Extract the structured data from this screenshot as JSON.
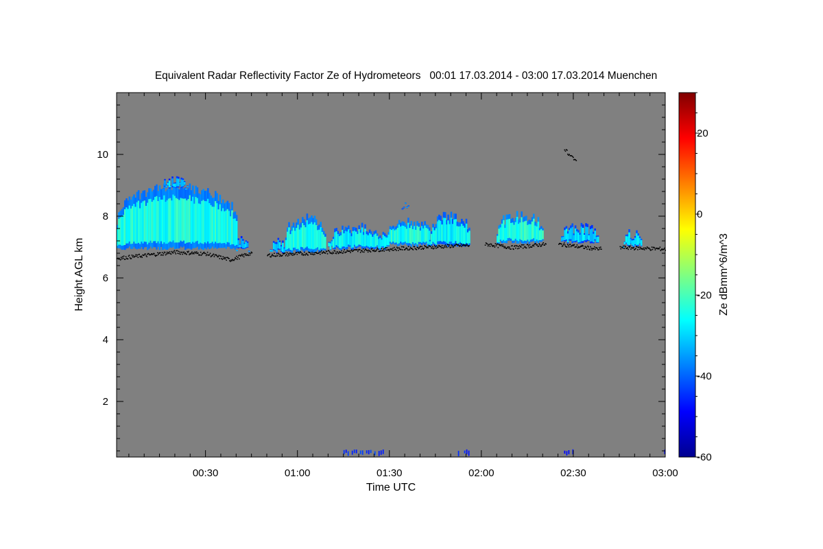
{
  "chart_data": {
    "type": "heatmap",
    "title": "Equivalent Radar Reflectivity Factor Ze of Hydrometeors   00:01 17.03.2014 - 03:00 17.03.2014 Muenchen",
    "xlabel": "Time UTC",
    "ylabel": "Height AGL km",
    "xlim_minutes": [
      1,
      180
    ],
    "ylim": [
      0.2,
      12.0
    ],
    "x_ticks": [
      {
        "minute": 30,
        "label": "00:30"
      },
      {
        "minute": 60,
        "label": "01:00"
      },
      {
        "minute": 90,
        "label": "01:30"
      },
      {
        "minute": 120,
        "label": "02:00"
      },
      {
        "minute": 150,
        "label": "02:30"
      },
      {
        "minute": 180,
        "label": "03:00"
      }
    ],
    "y_ticks": [
      2,
      4,
      6,
      8,
      10
    ],
    "colorbar": {
      "label": "Ze dBmm^6/m^3",
      "range": [
        -60,
        30
      ],
      "ticks": [
        -60,
        -40,
        -20,
        0,
        20
      ],
      "colors": [
        "#00008f",
        "#0000ff",
        "#0080ff",
        "#00ffff",
        "#80ff80",
        "#ffff00",
        "#ff8000",
        "#ff0000",
        "#800000"
      ]
    },
    "background_color": "#808080",
    "cloud_layers": [
      {
        "t_start": 1,
        "t_end": 40,
        "base_km": 6.9,
        "top_km": 9.1,
        "ze_db": -28
      },
      {
        "t_start": 16,
        "t_end": 24,
        "base_km": 8.9,
        "top_km": 9.3,
        "ze_db": -35
      },
      {
        "t_start": 40,
        "t_end": 44,
        "base_km": 6.9,
        "top_km": 7.4,
        "ze_db": -35
      },
      {
        "t_start": 51,
        "t_end": 56,
        "base_km": 6.8,
        "top_km": 7.3,
        "ze_db": -34
      },
      {
        "t_start": 56,
        "t_end": 69,
        "base_km": 6.8,
        "top_km": 8.1,
        "ze_db": -28
      },
      {
        "t_start": 70,
        "t_end": 89,
        "base_km": 6.9,
        "top_km": 7.8,
        "ze_db": -30
      },
      {
        "t_start": 89,
        "t_end": 103,
        "base_km": 7.0,
        "top_km": 8.0,
        "ze_db": -28
      },
      {
        "t_start": 103,
        "t_end": 116,
        "base_km": 7.0,
        "top_km": 8.2,
        "ze_db": -30
      },
      {
        "t_start": 125,
        "t_end": 140,
        "base_km": 7.1,
        "top_km": 8.2,
        "ze_db": -27
      },
      {
        "t_start": 146,
        "t_end": 158,
        "base_km": 7.1,
        "top_km": 7.8,
        "ze_db": -33
      },
      {
        "t_start": 166,
        "t_end": 172,
        "base_km": 7.0,
        "top_km": 7.6,
        "ze_db": -32
      },
      {
        "t_start": 94,
        "t_end": 96,
        "base_km": 8.4,
        "top_km": 8.6,
        "ze_db": -40
      }
    ],
    "cloud_base_points": [
      {
        "minute": 1,
        "km": 6.65
      },
      {
        "minute": 20,
        "km": 6.85
      },
      {
        "minute": 30,
        "km": 6.8
      },
      {
        "minute": 38,
        "km": 6.6
      },
      {
        "minute": 44,
        "km": 6.8
      },
      {
        "minute": 50,
        "km": 6.75
      },
      {
        "minute": 70,
        "km": 6.85
      },
      {
        "minute": 90,
        "km": 6.95
      },
      {
        "minute": 110,
        "km": 7.05
      },
      {
        "minute": 122,
        "km": 7.1
      },
      {
        "minute": 130,
        "km": 7.0
      },
      {
        "minute": 140,
        "km": 7.1
      },
      {
        "minute": 146,
        "km": 7.1
      },
      {
        "minute": 158,
        "km": 6.95
      },
      {
        "minute": 166,
        "km": 7.0
      },
      {
        "minute": 180,
        "km": 6.95
      }
    ],
    "high_points": [
      {
        "minute": 147,
        "km": 10.15
      },
      {
        "minute": 148,
        "km": 10.0
      },
      {
        "minute": 149,
        "km": 9.95
      },
      {
        "minute": 150,
        "km": 9.85
      }
    ],
    "surface_echoes": [
      {
        "t_start": 73,
        "t_end": 88,
        "ze_db": -48
      },
      {
        "t_start": 109,
        "t_end": 116,
        "ze_db": -48
      },
      {
        "t_start": 147,
        "t_end": 151,
        "ze_db": -50
      },
      {
        "t_start": 179,
        "t_end": 180,
        "ze_db": -50
      }
    ]
  }
}
